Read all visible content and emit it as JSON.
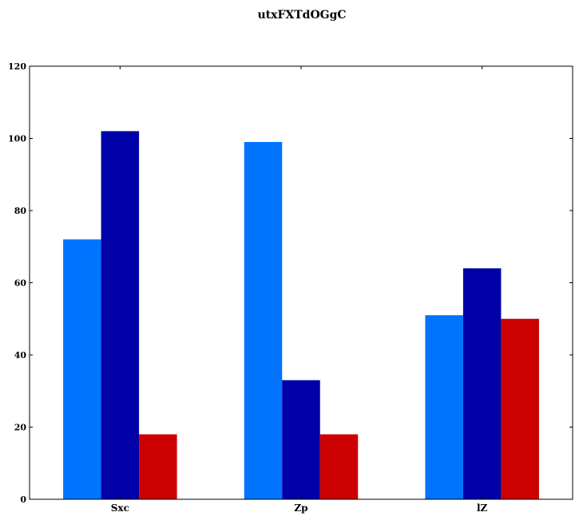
{
  "chart_data": {
    "type": "bar",
    "title": "utxFXTdOGgC",
    "xlabel": "",
    "ylabel": "",
    "categories": [
      "Sxc",
      "Zp",
      "lZ"
    ],
    "series": [
      {
        "values": [
          72,
          99,
          51
        ],
        "color": "#0073ff"
      },
      {
        "values": [
          102,
          33,
          64
        ],
        "color": "#0000a8"
      },
      {
        "values": [
          18,
          18,
          50
        ],
        "color": "#cc0000"
      }
    ],
    "ylim": [
      0,
      120
    ],
    "yticks": [
      0,
      20,
      40,
      60,
      80,
      100,
      120
    ],
    "grid": false,
    "legend": "none"
  }
}
